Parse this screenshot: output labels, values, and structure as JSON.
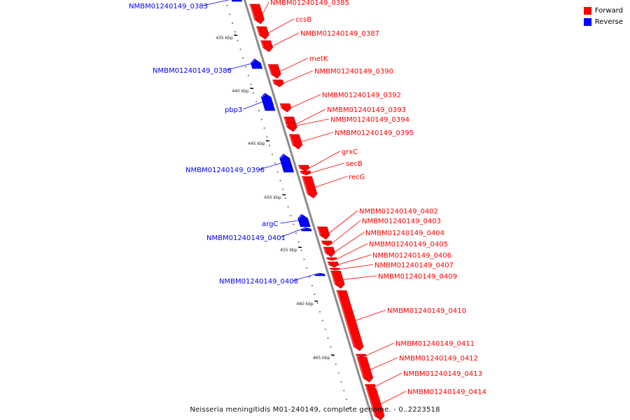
{
  "legend": {
    "items": [
      {
        "label": "Forward",
        "color": "#ff0000"
      },
      {
        "label": "Reverse",
        "color": "#0000ff"
      }
    ]
  },
  "caption": "Neisseria meningitidis M01-240149, complete genome. - 0..2223518",
  "colors": {
    "forward": "#ff0000",
    "reverse": "#0000ff",
    "backbone": "#8c8c8c",
    "tick": "#000000"
  },
  "ruler": {
    "unit": "kbp",
    "labels": [
      "435 kbp",
      "440 kbp",
      "445 kbp",
      "450 kbp",
      "455 kbp",
      "460 kbp",
      "465 kbp"
    ]
  },
  "genes": [
    {
      "label": "NMBM01240149_0383",
      "strand": "reverse"
    },
    {
      "label": "NMBM01240149_0385",
      "strand": "forward"
    },
    {
      "label": "ccsB",
      "strand": "forward"
    },
    {
      "label": "NMBM01240149_0387",
      "strand": "forward"
    },
    {
      "label": "NMBM01240149_0388",
      "strand": "reverse"
    },
    {
      "label": "metK",
      "strand": "forward"
    },
    {
      "label": "NMBM01240149_0390",
      "strand": "forward"
    },
    {
      "label": "pbp3",
      "strand": "reverse"
    },
    {
      "label": "NMBM01240149_0392",
      "strand": "forward"
    },
    {
      "label": "NMBM01240149_0393",
      "strand": "forward"
    },
    {
      "label": "NMBM01240149_0394",
      "strand": "forward"
    },
    {
      "label": "NMBM01240149_0395",
      "strand": "forward"
    },
    {
      "label": "NMBM01240149_0396",
      "strand": "reverse"
    },
    {
      "label": "grxC",
      "strand": "forward"
    },
    {
      "label": "secB",
      "strand": "forward"
    },
    {
      "label": "recG",
      "strand": "forward"
    },
    {
      "label": "argC",
      "strand": "reverse"
    },
    {
      "label": "NMBM01240149_0401",
      "strand": "reverse"
    },
    {
      "label": "NMBM01240149_0402",
      "strand": "forward"
    },
    {
      "label": "NMBM01240149_0403",
      "strand": "forward"
    },
    {
      "label": "NMBM01240149_0404",
      "strand": "forward"
    },
    {
      "label": "NMBM01240149_0405",
      "strand": "forward"
    },
    {
      "label": "NMBM01240149_0406",
      "strand": "forward"
    },
    {
      "label": "NMBM01240149_0407",
      "strand": "forward"
    },
    {
      "label": "NMBM01240149_0408",
      "strand": "reverse"
    },
    {
      "label": "NMBM01240149_0409",
      "strand": "forward"
    },
    {
      "label": "NMBM01240149_0410",
      "strand": "forward"
    },
    {
      "label": "NMBM01240149_0411",
      "strand": "forward"
    },
    {
      "label": "NMBM01240149_0412",
      "strand": "forward"
    },
    {
      "label": "NMBM01240149_0413",
      "strand": "forward"
    },
    {
      "label": "NMBM01240149_0414",
      "strand": "forward"
    }
  ]
}
